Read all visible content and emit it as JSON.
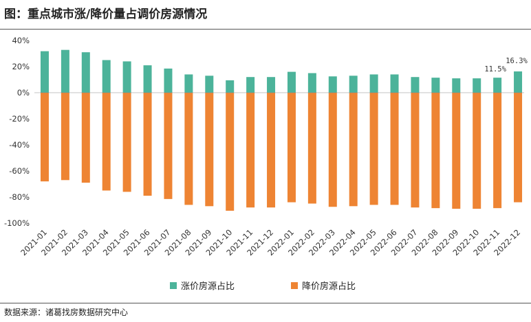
{
  "title": "图：重点城市涨/降价量占调价房源情况",
  "source": "数据来源：诸葛找房数据研究中心",
  "chart_data": {
    "type": "bar",
    "categories": [
      "2021-01",
      "2021-02",
      "2021-03",
      "2021-04",
      "2021-05",
      "2021-06",
      "2021-07",
      "2021-08",
      "2021-09",
      "2021-10",
      "2021-11",
      "2021-12",
      "2022-01",
      "2022-02",
      "2022-03",
      "2022-04",
      "2022-05",
      "2022-06",
      "2022-07",
      "2022-08",
      "2022-09",
      "2022-10",
      "2022-11",
      "2022-12"
    ],
    "series": [
      {
        "name": "涨价房源占比",
        "color": "#4cb39a",
        "values": [
          31.8,
          32.8,
          31.0,
          25.0,
          24.0,
          21.0,
          18.5,
          14.0,
          13.0,
          9.5,
          12.0,
          12.0,
          16.0,
          15.0,
          12.5,
          13.0,
          14.0,
          14.0,
          12.0,
          11.5,
          11.0,
          11.0,
          11.5,
          16.3
        ]
      },
      {
        "name": "降价房源占比",
        "color": "#ee8433",
        "values": [
          -68,
          -67,
          -69,
          -75,
          -76,
          -79,
          -81.5,
          -86,
          -87,
          -90.5,
          -88,
          -88,
          -84,
          -85,
          -87.5,
          -87,
          -86,
          -86,
          -88,
          -88.5,
          -89,
          -89,
          -88.5,
          -84
        ]
      }
    ],
    "ylim": [
      -100,
      40
    ],
    "yticks": [
      "40%",
      "20%",
      "0%",
      "-20%",
      "-40%",
      "-60%",
      "-80%",
      "-100%"
    ],
    "annotations": [
      {
        "category": "2022-11",
        "text": "11.5%"
      },
      {
        "category": "2022-12",
        "text": "16.3%"
      }
    ],
    "legend": [
      "涨价房源占比",
      "降价房源占比"
    ],
    "legend_position": "bottom",
    "grid": false
  }
}
